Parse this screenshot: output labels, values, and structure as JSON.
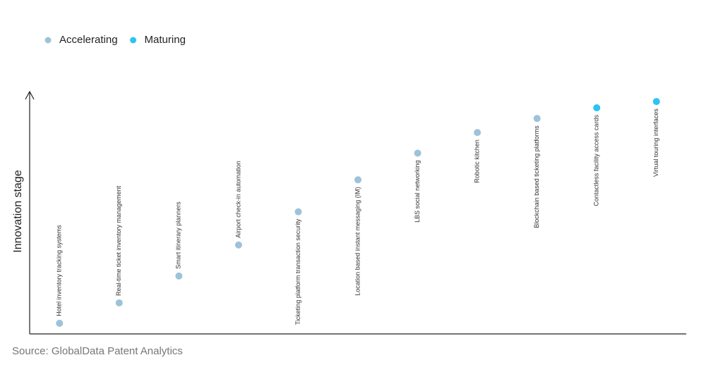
{
  "chart_data": {
    "type": "scatter",
    "y_axis_label": "Innovation stage",
    "source": "Source: GlobalData Patent Analytics",
    "categories": [
      "Hotel inventory tracking systems",
      "Real-time ticket inventory management",
      "Smart itinerary planners",
      "Airport check-in automation",
      "Ticketing platform transaction security",
      "Location based instant messaging (IM)",
      "LBS social networking",
      "Robotic kitchen",
      "Blockchain based ticketing platforms",
      "Contactless facility access cards",
      "Virtual touring interfaces"
    ],
    "series": [
      {
        "name": "Accelerating",
        "color": "#9dc3d9",
        "values": [
          4.4,
          12.8,
          23.9,
          36.7,
          50.4,
          63.6,
          74.6,
          83.1,
          88.9,
          null,
          null
        ]
      },
      {
        "name": "Maturing",
        "color": "#2cc3f5",
        "values": [
          null,
          null,
          null,
          null,
          null,
          null,
          null,
          null,
          null,
          93.3,
          95.9
        ]
      }
    ],
    "ylim": [
      0,
      100
    ]
  }
}
